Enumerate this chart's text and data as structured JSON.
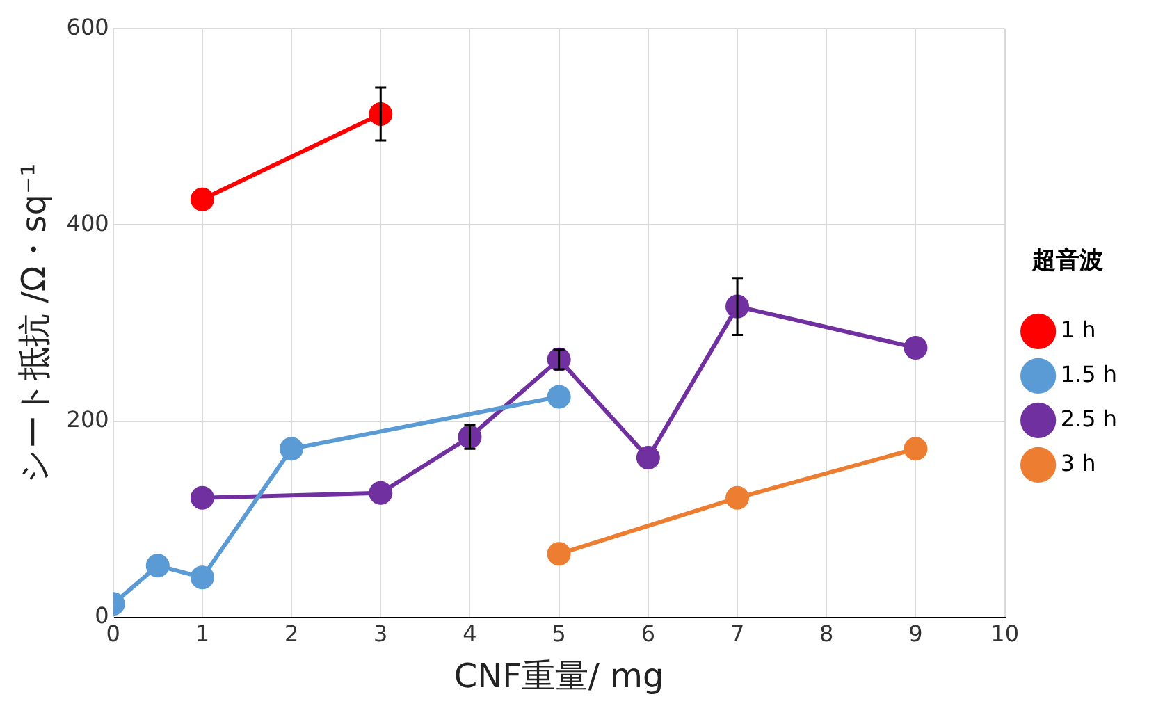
{
  "chart_data": {
    "type": "line",
    "xlabel": "CNF重量/ mg",
    "ylabel": "シート抵抗 /Ω・sq⁻¹",
    "legend_title": "超音波",
    "xlim": [
      0,
      10
    ],
    "xticks": [
      0,
      1,
      2,
      3,
      4,
      5,
      6,
      7,
      8,
      9,
      10
    ],
    "ylim": [
      0,
      600
    ],
    "yticks": [
      0,
      200,
      400,
      600
    ],
    "grid": true,
    "legend": "right",
    "marker": "circle",
    "line_style": "solid",
    "series": [
      {
        "name": "1 h",
        "color": "#ff0000",
        "x": [
          1,
          3
        ],
        "values": [
          426,
          513
        ],
        "errors": [
          null,
          27
        ]
      },
      {
        "name": "1.5 h",
        "color": "#5b9bd5",
        "x": [
          0,
          0.5,
          1,
          2,
          5
        ],
        "values": [
          14,
          53,
          41,
          172,
          225
        ]
      },
      {
        "name": "2.5 h",
        "color": "#7030a0",
        "x": [
          1,
          3,
          4,
          5,
          6,
          7,
          9
        ],
        "values": [
          122,
          127,
          184,
          263,
          163,
          317,
          275
        ],
        "errors": [
          null,
          null,
          12,
          10,
          null,
          29,
          null
        ]
      },
      {
        "name": "3 h",
        "color": "#ed7d31",
        "x": [
          5,
          7,
          9
        ],
        "values": [
          65,
          122,
          172
        ]
      }
    ]
  }
}
